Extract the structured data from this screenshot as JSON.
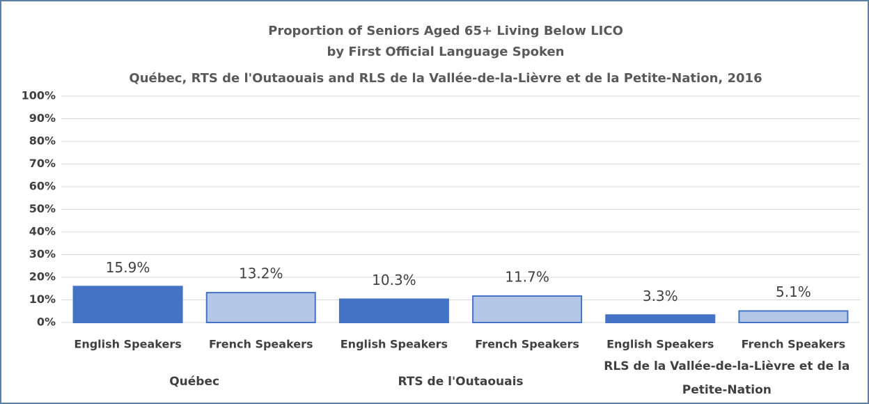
{
  "chart_data": {
    "type": "bar",
    "title": [
      "Proportion of Seniors Aged 65+ Living Below LICO",
      "by First Official Language Spoken",
      "Québec, RTS de l'Outaouais and RLS de la Vallée-de-la-Lièvre et de la Petite-Nation, 2016"
    ],
    "categories": [
      "English Speakers",
      "French Speakers",
      "English Speakers",
      "French Speakers",
      "English Speakers",
      "French Speakers"
    ],
    "groups": [
      "Québec",
      "RTS de l'Outaouais",
      "RLS de la Vallée-de-la-Lièvre et de la Petite-Nation"
    ],
    "values": [
      15.9,
      13.2,
      10.3,
      11.7,
      3.3,
      5.1
    ],
    "value_labels": [
      "15.9%",
      "13.2%",
      "10.3%",
      "11.7%",
      "3.3%",
      "5.1%"
    ],
    "colors": [
      "#4472c4",
      "#b4c7e7",
      "#4472c4",
      "#b4c7e7",
      "#4472c4",
      "#b4c7e7"
    ],
    "ylim": [
      0,
      100
    ],
    "yticks": [
      {
        "value": 0,
        "label": "0%"
      },
      {
        "value": 10,
        "label": "10%"
      },
      {
        "value": 20,
        "label": "20%"
      },
      {
        "value": 30,
        "label": "30%"
      },
      {
        "value": 40,
        "label": "40%"
      },
      {
        "value": 50,
        "label": "50%"
      },
      {
        "value": 60,
        "label": "60%"
      },
      {
        "value": 70,
        "label": "70%"
      },
      {
        "value": 80,
        "label": "80%"
      },
      {
        "value": 90,
        "label": "90%"
      },
      {
        "value": 100,
        "label": "100%"
      }
    ],
    "grid": true
  }
}
